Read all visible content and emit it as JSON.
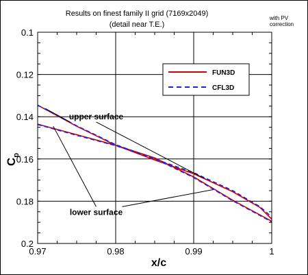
{
  "chart_data": {
    "type": "line",
    "title": "Results on finest family II grid (7169x2049)",
    "subtitle": "(detail near T.E.)",
    "note_line1": "with PV",
    "note_line2": "correction",
    "xlabel": "x/c",
    "ylabel_main": "C",
    "ylabel_sub": "p",
    "xlim": [
      0.97,
      1.0
    ],
    "ylim": [
      0.2,
      0.1
    ],
    "y_inverted": true,
    "grid": true,
    "x_ticks": [
      0.97,
      0.98,
      0.99,
      1.0
    ],
    "x_tick_labels": [
      "0.97",
      "0.98",
      "0.99",
      "1"
    ],
    "y_ticks": [
      0.1,
      0.12,
      0.14,
      0.16,
      0.18,
      0.2
    ],
    "y_tick_labels": [
      "0.1",
      "0.12",
      "0.14",
      "0.16",
      "0.18",
      "0.2"
    ],
    "legend_position": "top-right",
    "series": [
      {
        "name": "FUN3D",
        "color": "#d00000",
        "dashed": false,
        "upper_x": [
          0.97,
          0.975,
          0.98,
          0.985,
          0.99,
          0.995,
          0.9985,
          1.0
        ],
        "upper_y": [
          0.1345,
          0.1445,
          0.1535,
          0.1605,
          0.167,
          0.1755,
          0.183,
          0.1885
        ],
        "lower_x": [
          0.97,
          0.975,
          0.98,
          0.985,
          0.99,
          0.995,
          0.9985,
          1.0
        ],
        "lower_y": [
          0.1435,
          0.1485,
          0.1535,
          0.1595,
          0.1685,
          0.1795,
          0.1865,
          0.1895
        ]
      },
      {
        "name": "CFL3D",
        "color": "#2020e0",
        "dashed": true,
        "upper_x": [
          0.97,
          0.975,
          0.98,
          0.985,
          0.99,
          0.995,
          0.9985,
          1.0
        ],
        "upper_y": [
          0.1345,
          0.1443,
          0.1532,
          0.16,
          0.1665,
          0.175,
          0.1826,
          0.1875
        ],
        "lower_x": [
          0.97,
          0.975,
          0.98,
          0.985,
          0.99,
          0.995,
          0.9985,
          1.0
        ],
        "lower_y": [
          0.1437,
          0.1488,
          0.1537,
          0.1598,
          0.1688,
          0.1798,
          0.1868,
          0.1898
        ]
      }
    ],
    "annotations": [
      {
        "text": "upper surface",
        "target_x": 0.9915,
        "target_y": 0.1695,
        "label_x": 0.9775,
        "label_y": 0.1412
      },
      {
        "text": "lower surface",
        "target_x": 0.972,
        "target_y": 0.1445,
        "label_x": 0.9775,
        "label_y": 0.1865
      }
    ]
  }
}
